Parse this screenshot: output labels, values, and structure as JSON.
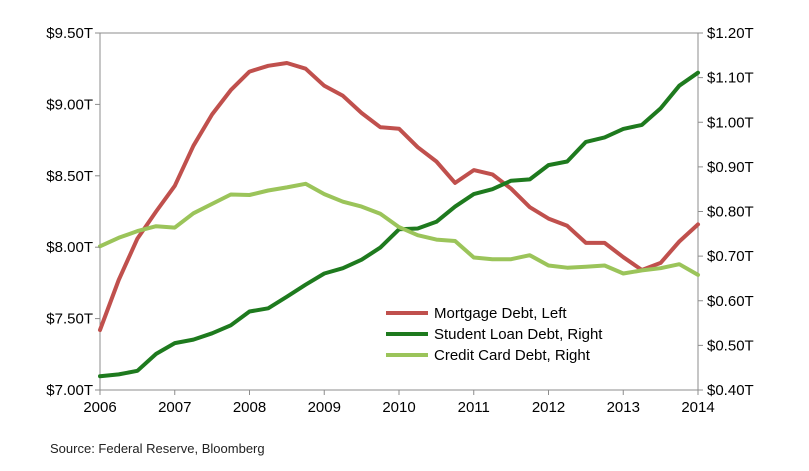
{
  "chart_data": {
    "type": "line",
    "title": "",
    "xlabel": "",
    "ylabel_left": "",
    "ylabel_right": "",
    "xlim": [
      2006,
      2014
    ],
    "x_ticks": [
      2006,
      2007,
      2008,
      2009,
      2010,
      2011,
      2012,
      2013,
      2014
    ],
    "x_tick_labels": [
      "2006",
      "2007",
      "2008",
      "2009",
      "2010",
      "2011",
      "2012",
      "2013",
      "2014"
    ],
    "y_left": {
      "lim": [
        7.0,
        9.5
      ],
      "ticks": [
        7.0,
        7.5,
        8.0,
        8.5,
        9.0,
        9.5
      ],
      "tick_labels": [
        "$7.00T",
        "$7.50T",
        "$8.00T",
        "$8.50T",
        "$9.00T",
        "$9.50T"
      ]
    },
    "y_right": {
      "lim": [
        0.4,
        1.2
      ],
      "ticks": [
        0.4,
        0.5,
        0.6,
        0.7,
        0.8,
        0.9,
        1.0,
        1.1,
        1.2
      ],
      "tick_labels": [
        "$0.40T",
        "$0.50T",
        "$0.60T",
        "$0.70T",
        "$0.80T",
        "$0.90T",
        "$1.00T",
        "$1.10T",
        "$1.20T"
      ]
    },
    "grid": false,
    "legend_position": "bottom-right",
    "series": [
      {
        "name": "Mortgage Debt, Left",
        "axis": "left",
        "color": "#c0504d",
        "x": [
          2006.0,
          2006.25,
          2006.5,
          2006.75,
          2007.0,
          2007.25,
          2007.5,
          2007.75,
          2008.0,
          2008.25,
          2008.5,
          2008.75,
          2009.0,
          2009.25,
          2009.5,
          2009.75,
          2010.0,
          2010.25,
          2010.5,
          2010.75,
          2011.0,
          2011.25,
          2011.5,
          2011.75,
          2012.0,
          2012.25,
          2012.5,
          2012.75,
          2013.0,
          2013.25,
          2013.5,
          2013.75,
          2014.0
        ],
        "y": [
          7.42,
          7.77,
          8.06,
          8.25,
          8.43,
          8.71,
          8.93,
          9.1,
          9.23,
          9.27,
          9.29,
          9.25,
          9.13,
          9.06,
          8.94,
          8.84,
          8.83,
          8.7,
          8.6,
          8.45,
          8.54,
          8.51,
          8.41,
          8.28,
          8.2,
          8.15,
          8.03,
          8.03,
          7.93,
          7.84,
          7.89,
          8.04,
          8.16
        ]
      },
      {
        "name": "Student Loan Debt, Right",
        "axis": "right",
        "color": "#1e7a1e",
        "x": [
          2006.0,
          2006.25,
          2006.5,
          2006.75,
          2007.0,
          2007.25,
          2007.5,
          2007.75,
          2008.0,
          2008.25,
          2008.5,
          2008.75,
          2009.0,
          2009.25,
          2009.5,
          2009.75,
          2010.0,
          2010.25,
          2010.5,
          2010.75,
          2011.0,
          2011.25,
          2011.5,
          2011.75,
          2012.0,
          2012.25,
          2012.5,
          2012.75,
          2013.0,
          2013.25,
          2013.5,
          2013.75,
          2014.0
        ],
        "y": [
          0.431,
          0.435,
          0.443,
          0.481,
          0.505,
          0.513,
          0.527,
          0.545,
          0.576,
          0.583,
          0.609,
          0.636,
          0.661,
          0.673,
          0.692,
          0.719,
          0.76,
          0.762,
          0.777,
          0.811,
          0.839,
          0.85,
          0.869,
          0.872,
          0.904,
          0.912,
          0.956,
          0.966,
          0.985,
          0.994,
          1.031,
          1.082,
          1.111
        ]
      },
      {
        "name": "Credit Card Debt, Right",
        "axis": "right",
        "color": "#9bc45a",
        "x": [
          2006.0,
          2006.25,
          2006.5,
          2006.75,
          2007.0,
          2007.25,
          2007.5,
          2007.75,
          2008.0,
          2008.25,
          2008.5,
          2008.75,
          2009.0,
          2009.25,
          2009.5,
          2009.75,
          2010.0,
          2010.25,
          2010.5,
          2010.75,
          2011.0,
          2011.25,
          2011.5,
          2011.75,
          2012.0,
          2012.25,
          2012.5,
          2012.75,
          2013.0,
          2013.25,
          2013.5,
          2013.75,
          2014.0
        ],
        "y": [
          0.722,
          0.741,
          0.756,
          0.767,
          0.764,
          0.796,
          0.817,
          0.838,
          0.837,
          0.847,
          0.854,
          0.862,
          0.839,
          0.822,
          0.811,
          0.795,
          0.765,
          0.747,
          0.737,
          0.734,
          0.697,
          0.693,
          0.693,
          0.702,
          0.679,
          0.674,
          0.676,
          0.679,
          0.661,
          0.668,
          0.673,
          0.682,
          0.658
        ]
      }
    ]
  },
  "source_text": "Source: Federal Reserve, Bloomberg"
}
